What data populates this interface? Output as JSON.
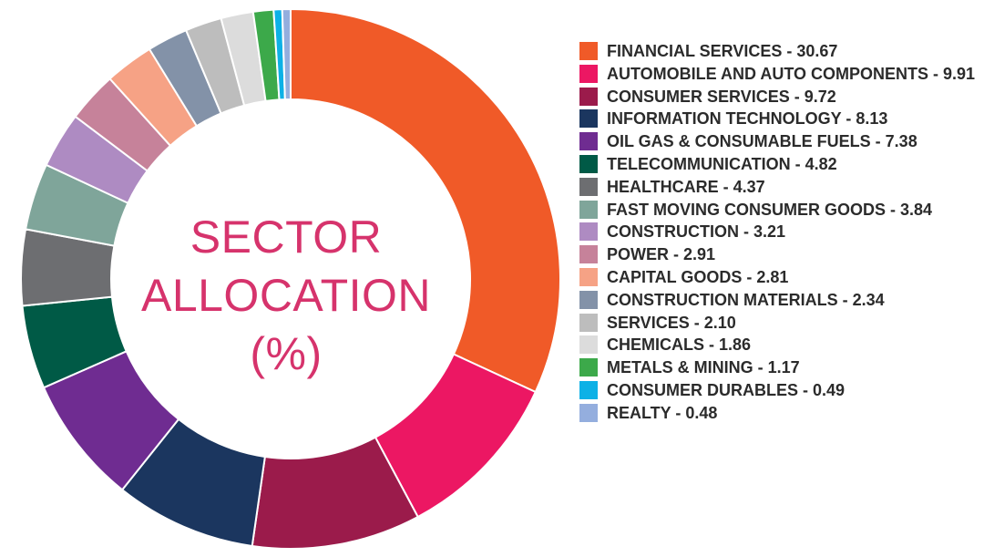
{
  "chart_data": {
    "type": "pie",
    "donut": true,
    "title_lines": [
      "SECTOR",
      "ALLOCATION",
      "(%)"
    ],
    "legend_position": "right",
    "slices": [
      {
        "label": "FINANCIAL SERVICES",
        "value": 30.67,
        "display": "FINANCIAL SERVICES - 30.67",
        "color": "#f05a28"
      },
      {
        "label": "AUTOMOBILE AND AUTO COMPONENTS",
        "value": 9.91,
        "display": "AUTOMOBILE AND AUTO COMPONENTS - 9.91",
        "color": "#ec1763"
      },
      {
        "label": "CONSUMER SERVICES",
        "value": 9.72,
        "display": "CONSUMER SERVICES - 9.72",
        "color": "#9b1b4b"
      },
      {
        "label": "INFORMATION TECHNOLOGY",
        "value": 8.13,
        "display": "INFORMATION TECHNOLOGY - 8.13",
        "color": "#1b365f"
      },
      {
        "label": "OIL GAS & CONSUMABLE FUELS",
        "value": 7.38,
        "display": "OIL GAS & CONSUMABLE FUELS - 7.38",
        "color": "#6f2c91"
      },
      {
        "label": "TELECOMMUNICATION",
        "value": 4.82,
        "display": "TELECOMMUNICATION - 4.82",
        "color": "#005a46"
      },
      {
        "label": "HEALTHCARE",
        "value": 4.37,
        "display": "HEALTHCARE - 4.37",
        "color": "#6d6e71"
      },
      {
        "label": "FAST MOVING CONSUMER GOODS",
        "value": 3.84,
        "display": "FAST MOVING CONSUMER GOODS - 3.84",
        "color": "#7fa59a"
      },
      {
        "label": "CONSTRUCTION",
        "value": 3.21,
        "display": "CONSTRUCTION - 3.21",
        "color": "#ae8bc2"
      },
      {
        "label": "POWER",
        "value": 2.91,
        "display": "POWER - 2.91",
        "color": "#c6829a"
      },
      {
        "label": "CAPITAL GOODS",
        "value": 2.81,
        "display": "CAPITAL GOODS - 2.81",
        "color": "#f6a285"
      },
      {
        "label": "CONSTRUCTION MATERIALS",
        "value": 2.34,
        "display": "CONSTRUCTION MATERIALS - 2.34",
        "color": "#8392a8"
      },
      {
        "label": "SERVICES",
        "value": 2.1,
        "display": "SERVICES - 2.10",
        "color": "#bdbdbd"
      },
      {
        "label": "CHEMICALS",
        "value": 1.86,
        "display": "CHEMICALS - 1.86",
        "color": "#dcdcdc"
      },
      {
        "label": "METALS & MINING",
        "value": 1.17,
        "display": "METALS & MINING - 1.17",
        "color": "#3ca94a"
      },
      {
        "label": "CONSUMER DURABLES",
        "value": 0.49,
        "display": "CONSUMER DURABLES - 0.49",
        "color": "#0db1e6"
      },
      {
        "label": "REALTY",
        "value": 0.48,
        "display": "REALTY - 0.48",
        "color": "#94aede"
      }
    ]
  }
}
